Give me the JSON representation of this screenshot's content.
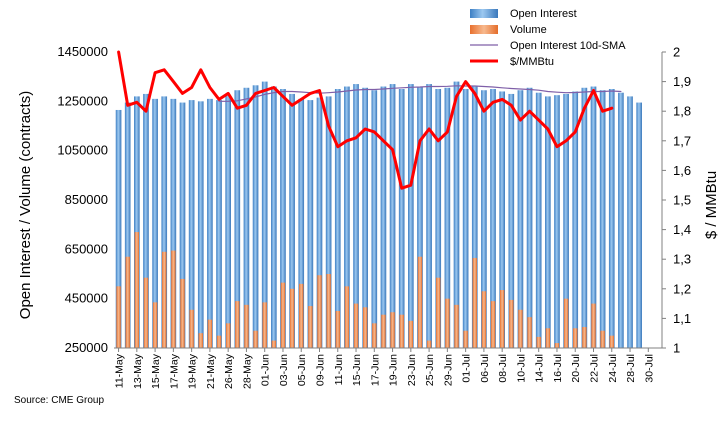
{
  "chart_data": {
    "type": "bar",
    "source": "Source: CME Group",
    "ylabel_left": "Open Interest / Volume (contracts)",
    "ylabel_right": "$ / MMBtu",
    "ylim_left": [
      250000,
      1450000
    ],
    "yticks_left": [
      "250000",
      "450000",
      "650000",
      "850000",
      "1050000",
      "1250000",
      "1450000"
    ],
    "ylim_right": [
      1,
      2
    ],
    "yticks_right": [
      "1",
      "1,1",
      "1,2",
      "1,3",
      "1,4",
      "1,5",
      "1,6",
      "1,7",
      "1,8",
      "1,9",
      "2"
    ],
    "x_tick_labels": [
      "11-May",
      "13-May",
      "15-May",
      "17-May",
      "19-May",
      "21-May",
      "26-May",
      "28-May",
      "01-Jun",
      "03-Jun",
      "05-Jun",
      "09-Jun",
      "11-Jun",
      "15-Jun",
      "17-Jun",
      "19-Jun",
      "23-Jun",
      "25-Jun",
      "29-Jun",
      "01-Jul",
      "06-Jul",
      "08-Jul",
      "10-Jul",
      "14-Jul",
      "16-Jul",
      "20-Jul",
      "22-Jul",
      "24-Jul",
      "28-Jul",
      "30-Jul"
    ],
    "legend": [
      {
        "name": "Open Interest",
        "kind": "bar",
        "color": "#5b9bd5"
      },
      {
        "name": "Volume",
        "kind": "bar",
        "color": "#f4a26a"
      },
      {
        "name": "Open Interest 10d-SMA",
        "kind": "line",
        "color": "#7f5fa8"
      },
      {
        "name": "$/MMBtu",
        "kind": "line",
        "color": "#ff0000"
      }
    ],
    "series": [
      {
        "name": "Open Interest",
        "axis": "left",
        "values": [
          1215000,
          1245000,
          1270000,
          1280000,
          1260000,
          1270000,
          1260000,
          1245000,
          1255000,
          1250000,
          1260000,
          1255000,
          1275000,
          1295000,
          1305000,
          1315000,
          1330000,
          1310000,
          1300000,
          1280000,
          1260000,
          1255000,
          1265000,
          1270000,
          1300000,
          1310000,
          1320000,
          1305000,
          1295000,
          1310000,
          1320000,
          1300000,
          1320000,
          1310000,
          1320000,
          1300000,
          1305000,
          1330000,
          1300000,
          1310000,
          1295000,
          1300000,
          1290000,
          1280000,
          1295000,
          1305000,
          1285000,
          1270000,
          1275000,
          1280000,
          1290000,
          1305000,
          1310000,
          1295000,
          1300000,
          1285000,
          1270000,
          1245000,
          null,
          null
        ]
      },
      {
        "name": "Volume",
        "axis": "left",
        "values": [
          500000,
          620000,
          720000,
          535000,
          435000,
          640000,
          645000,
          530000,
          405000,
          310000,
          365000,
          300000,
          350000,
          440000,
          425000,
          320000,
          435000,
          280000,
          515000,
          490000,
          510000,
          420000,
          545000,
          550000,
          400000,
          500000,
          430000,
          415000,
          350000,
          385000,
          395000,
          385000,
          360000,
          620000,
          280000,
          535000,
          450000,
          425000,
          320000,
          615000,
          480000,
          440000,
          485000,
          445000,
          405000,
          375000,
          295000,
          330000,
          270000,
          450000,
          330000,
          335000,
          430000,
          320000,
          300000,
          null,
          null,
          null,
          null,
          null
        ]
      },
      {
        "name": "Open Interest 10d-SMA",
        "axis": "left",
        "values": [
          null,
          null,
          null,
          null,
          null,
          null,
          null,
          null,
          null,
          null,
          null,
          1250000,
          1250000,
          1252000,
          1260000,
          1268000,
          1278000,
          1285000,
          1290000,
          1290000,
          1288000,
          1285000,
          1283000,
          1285000,
          1288000,
          1292000,
          1296000,
          1298000,
          1298000,
          1300000,
          1303000,
          1305000,
          1307000,
          1308000,
          1310000,
          1310000,
          1311000,
          1313000,
          1312000,
          1312000,
          1310000,
          1308000,
          1305000,
          1302000,
          1300000,
          1298000,
          1295000,
          1290000,
          1287000,
          1285000,
          1286000,
          1288000,
          1290000,
          1290000,
          1292000,
          1290000,
          null,
          null,
          null,
          null
        ]
      },
      {
        "name": "$/MMBtu",
        "axis": "right",
        "values": [
          2.0,
          1.82,
          1.83,
          1.8,
          1.93,
          1.94,
          1.9,
          1.86,
          1.88,
          1.94,
          1.88,
          1.84,
          1.86,
          1.81,
          1.82,
          1.86,
          1.87,
          1.88,
          1.85,
          1.82,
          1.84,
          1.86,
          1.87,
          1.75,
          1.68,
          1.7,
          1.71,
          1.74,
          1.73,
          1.7,
          1.67,
          1.54,
          1.55,
          1.7,
          1.74,
          1.7,
          1.73,
          1.85,
          1.9,
          1.86,
          1.8,
          1.83,
          1.84,
          1.82,
          1.77,
          1.8,
          1.77,
          1.74,
          1.68,
          1.7,
          1.73,
          1.81,
          1.87,
          1.8,
          1.81,
          null,
          null,
          null,
          null,
          null
        ]
      }
    ],
    "grid": false,
    "legend_position": "top-right"
  }
}
